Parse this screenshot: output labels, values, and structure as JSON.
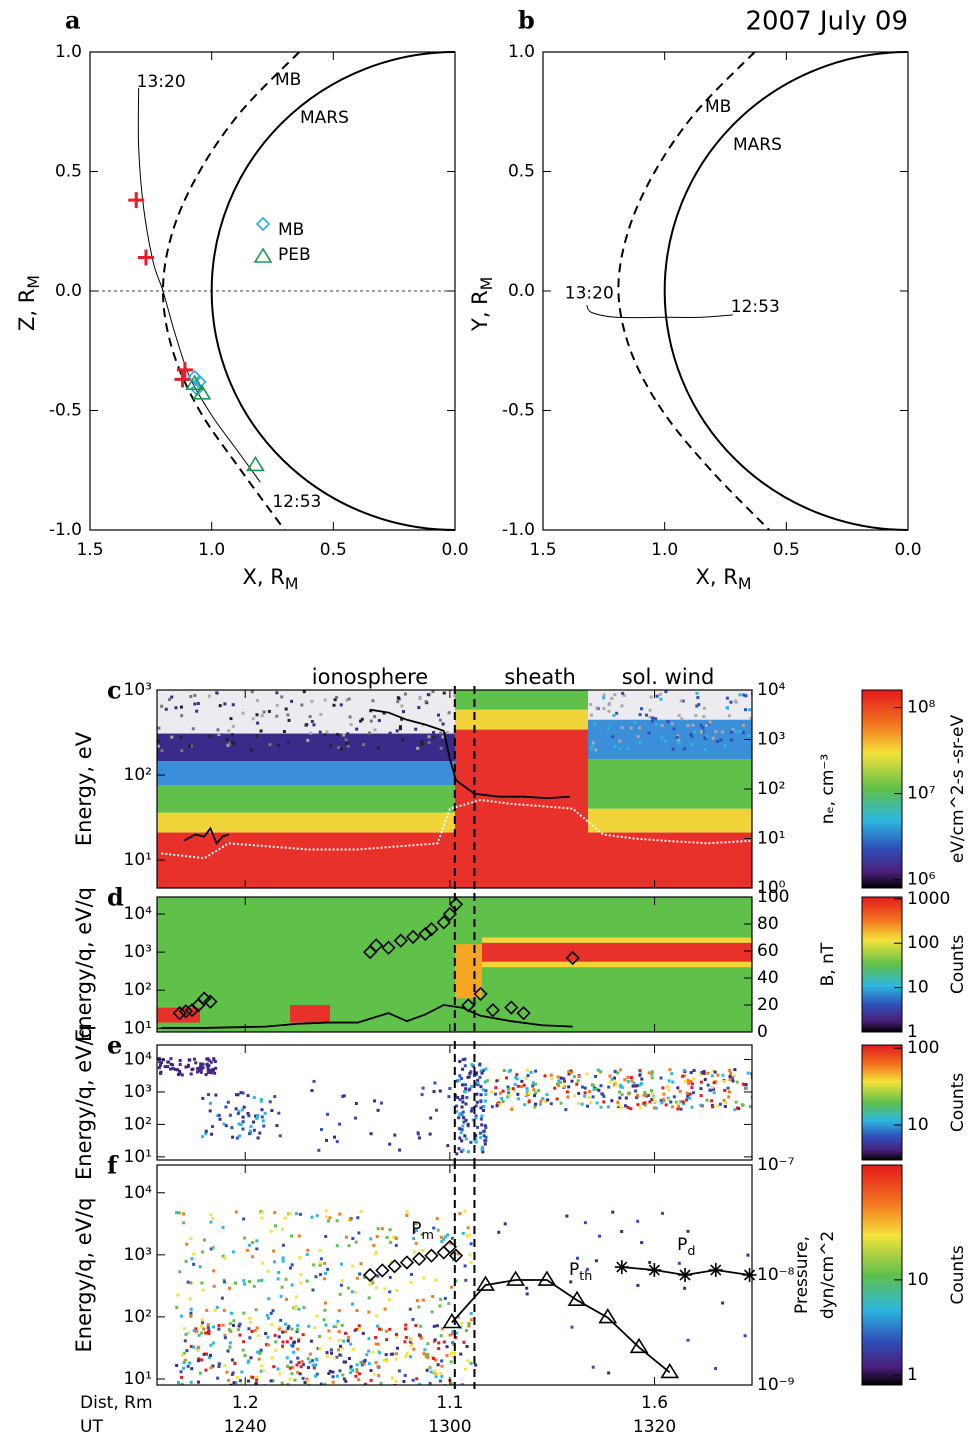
{
  "chart_data": [
    {
      "type": "orbit",
      "label": "a",
      "xlim": [
        1.5,
        0
      ],
      "ylim": [
        -1,
        1
      ],
      "xticks": [
        1.5,
        {
          "value": 1,
          "label": "1.0"
        },
        0.5,
        {
          "value": 0,
          "label": "0.0"
        }
      ],
      "yticks": [
        {
          "value": 1,
          "label": "1.0"
        },
        0.5,
        {
          "value": 0,
          "label": "0.0"
        },
        -0.5,
        {
          "value": -1,
          "label": "-1.0"
        }
      ],
      "xlabel": {
        "text": "X, R",
        "sub": "M"
      },
      "ylabel": {
        "text": "Z, R",
        "sub": "M"
      },
      "mars_radius": 1,
      "mars_label": "MARS",
      "mb_label": "MB",
      "mb_x": [
        0.64,
        0.88,
        1.05,
        1.16,
        1.2,
        1.16,
        1.05,
        0.88,
        0.7
      ],
      "mb_y": [
        1,
        0.75,
        0.5,
        0.25,
        0,
        -0.25,
        -0.5,
        -0.75,
        -1
      ],
      "hline": 0,
      "orbit": {
        "x": [
          1.3,
          1.3,
          1.28,
          1.24,
          1.2,
          1.15,
          1.09,
          1.0,
          0.9,
          0.8
        ],
        "y": [
          0.85,
          0.6,
          0.35,
          0.12,
          0,
          -0.18,
          -0.36,
          -0.52,
          -0.66,
          -0.8
        ],
        "start_label": "13:20",
        "end_label": "12:53"
      },
      "crossings": {
        "color": "#e41e26",
        "x": [
          1.31,
          1.27,
          1.11,
          1.12
        ],
        "y": [
          0.38,
          0.14,
          -0.33,
          -0.37
        ]
      },
      "series": [
        {
          "name": "MB",
          "marker": "diamond",
          "color": "#29abe2",
          "x": [
            1.07,
            1.05,
            1.06
          ],
          "y": [
            -0.36,
            -0.38,
            -0.41
          ]
        },
        {
          "name": "PEB",
          "marker": "triangle",
          "color": "#1a9850",
          "x": [
            1.07,
            1.04,
            0.82
          ],
          "y": [
            -0.39,
            -0.43,
            -0.73
          ]
        }
      ]
    },
    {
      "type": "orbit",
      "label": "b",
      "annotation": "2007  July 09",
      "xlim": [
        1.5,
        0
      ],
      "ylim": [
        -1,
        1
      ],
      "xticks": [
        1.5,
        {
          "value": 1,
          "label": "1.0"
        },
        0.5,
        {
          "value": 0,
          "label": "0.0"
        }
      ],
      "yticks": [
        {
          "value": 1,
          "label": "1.0"
        },
        0.5,
        {
          "value": 0,
          "label": "0.0"
        },
        -0.5,
        {
          "value": -1,
          "label": "-1.0"
        }
      ],
      "xlabel": {
        "text": "X, R",
        "sub": "M"
      },
      "ylabel": {
        "text": "Y, R",
        "sub": "M"
      },
      "mars_radius": 1,
      "mars_label": "MARS",
      "mb_label": "MB",
      "mb_x": [
        0.63,
        0.87,
        1.04,
        1.15,
        1.19,
        1.14,
        1.01,
        0.81,
        0.57
      ],
      "mb_y": [
        1,
        0.75,
        0.5,
        0.25,
        0,
        -0.25,
        -0.5,
        -0.75,
        -1
      ],
      "orbit": {
        "x": [
          1.32,
          1.3,
          1.2,
          1.0,
          0.85,
          0.72
        ],
        "y": [
          -0.06,
          -0.09,
          -0.11,
          -0.11,
          -0.11,
          -0.1
        ],
        "start_label": "13:20",
        "end_label": "12:53"
      }
    },
    {
      "type": "spectrogram",
      "label": "c",
      "xlim": [
        12.523,
        13.492
      ],
      "ylim": [
        4.7,
        1000
      ],
      "ylog": true,
      "yticks": [
        {
          "value": 10,
          "label": "10¹"
        },
        {
          "value": 100,
          "label": "10²"
        },
        {
          "value": 1000,
          "label": "10³"
        }
      ],
      "ylabel": "Energy, eV",
      "y2lim": [
        1,
        10000
      ],
      "y2log": true,
      "y2ticks": [
        {
          "value": 1,
          "label": "10⁰"
        },
        {
          "value": 10,
          "label": "10¹"
        },
        {
          "value": 100,
          "label": "10²"
        },
        {
          "value": 1000,
          "label": "10³"
        },
        {
          "value": 10000,
          "label": "10⁴"
        }
      ],
      "y2label": [
        "nₑ, cm⁻³"
      ],
      "annotations": [
        "ionosphere",
        "sheath",
        "sol. wind"
      ],
      "boundaries": [
        13.008,
        13.04
      ],
      "colorbar": {
        "clim": [
          800000,
          160000000
        ],
        "ticks": [
          {
            "value": 1000000,
            "label": "10⁶"
          },
          {
            "value": 10000000,
            "label": "10⁷"
          },
          {
            "value": 100000000,
            "label": "10⁸"
          }
        ],
        "label": "eV/cm^2-s -sr-eV"
      },
      "series": [
        {
          "color": "#000000",
          "axis": "y2",
          "line": true,
          "x": [
            12.567,
            12.585,
            12.6,
            12.61,
            12.62,
            12.63,
            12.64,
            12.75,
            12.87,
            12.9,
            12.93,
            12.96,
            12.99,
            13.0,
            13.01,
            13.04,
            13.08,
            13.12,
            13.16,
            13.195
          ],
          "values": [
            9,
            12,
            11,
            16,
            8,
            11,
            12,
            null,
            4000,
            3500,
            2500,
            2000,
            1500,
            400,
            150,
            80,
            70,
            70,
            65,
            70
          ]
        },
        {
          "color": "#ffffff",
          "axis": "y2",
          "line": true,
          "dash": true,
          "x": [
            12.53,
            12.6,
            12.64,
            12.7,
            12.77,
            12.85,
            12.92,
            12.98,
            13.0,
            13.05,
            13.1,
            13.15,
            13.2,
            13.25,
            13.3,
            13.35,
            13.42,
            13.49
          ],
          "values": [
            5,
            4,
            8,
            7,
            6,
            6,
            7,
            8,
            40,
            60,
            50,
            45,
            40,
            12,
            10,
            9,
            8,
            9
          ]
        }
      ]
    },
    {
      "type": "spectrogram",
      "label": "d",
      "xlim": [
        12.523,
        13.492
      ],
      "ylim": [
        8,
        28000
      ],
      "ylog": true,
      "yticks": [
        {
          "value": 10,
          "label": "10¹"
        },
        {
          "value": 100,
          "label": "10²"
        },
        {
          "value": 1000,
          "label": "10³"
        },
        {
          "value": 10000,
          "label": "10⁴"
        }
      ],
      "ylabel": "Energy/q,  eV/q",
      "y2lim": [
        0,
        100
      ],
      "y2ticks": [
        0,
        20,
        40,
        60,
        80,
        100
      ],
      "y2label": [
        "B, nT"
      ],
      "boundaries": [
        13.008,
        13.04
      ],
      "colorbar": {
        "clim": [
          1,
          1100
        ],
        "ticks": [
          1,
          10,
          100,
          1000
        ],
        "label": "Counts"
      },
      "series": [
        {
          "color": "#000000",
          "axis": "y2",
          "line": true,
          "x": [
            12.53,
            12.6,
            12.7,
            12.75,
            12.8,
            12.85,
            12.9,
            12.93,
            12.96,
            12.99,
            13.02,
            13.05,
            13.1,
            13.15,
            13.2
          ],
          "values": [
            3,
            3,
            4,
            6,
            7,
            7,
            14,
            8,
            13,
            20,
            18,
            12,
            8,
            5,
            4
          ]
        },
        {
          "color": "#000000",
          "axis": "y",
          "marker": "diamond",
          "x": [
            12.56,
            12.57,
            12.58,
            12.59,
            12.6,
            12.61,
            12.87,
            12.88,
            12.9,
            12.92,
            12.94,
            12.96,
            12.97,
            12.99,
            13.0,
            13.01,
            13.03,
            13.05,
            13.07,
            13.1,
            13.12,
            13.2
          ],
          "values": [
            25,
            28,
            30,
            40,
            60,
            50,
            1000,
            1500,
            1300,
            2000,
            2500,
            3000,
            4000,
            6000,
            10000,
            18000,
            40,
            80,
            30,
            35,
            25,
            700
          ]
        }
      ]
    },
    {
      "type": "spectrogram",
      "label": "e",
      "xlim": [
        12.523,
        13.492
      ],
      "ylim": [
        8,
        28000
      ],
      "ylog": true,
      "yticks": [
        {
          "value": 10,
          "label": "10¹"
        },
        {
          "value": 100,
          "label": "10²"
        },
        {
          "value": 1000,
          "label": "10³"
        },
        {
          "value": 10000,
          "label": "10⁴"
        }
      ],
      "ylabel": "Energy/q,  eV/q",
      "boundaries": [
        13.008,
        13.04
      ],
      "colorbar": {
        "clim": [
          3.5,
          110
        ],
        "ticks": [
          10,
          100
        ],
        "label": "Counts"
      }
    },
    {
      "type": "spectrogram",
      "label": "f",
      "xlim": [
        12.523,
        13.492
      ],
      "ylim": [
        8,
        28000
      ],
      "ylog": true,
      "yticks": [
        {
          "value": 10,
          "label": "10¹"
        },
        {
          "value": 100,
          "label": "10²"
        },
        {
          "value": 1000,
          "label": "10³"
        },
        {
          "value": 10000,
          "label": "10⁴"
        }
      ],
      "ylabel": "Energy/q,  eV/q",
      "y2lim": [
        1e-09,
        1e-07
      ],
      "y2log": true,
      "y2ticks": [
        {
          "value": 1e-09,
          "label": "10⁻⁹"
        },
        {
          "value": 1e-08,
          "label": "10⁻⁸"
        },
        {
          "value": 1e-07,
          "label": "10⁻⁷"
        }
      ],
      "y2label": [
        "Pressure,",
        "dyn/cm^2"
      ],
      "boundaries": [
        13.008,
        13.04
      ],
      "colorbar": {
        "clim": [
          0.79,
          160
        ],
        "ticks": [
          1,
          10
        ],
        "label": "Counts"
      },
      "xticks": [
        {
          "value": 12.6667,
          "label": "1240"
        },
        {
          "value": 13,
          "label": "1300"
        },
        {
          "value": 13.3333,
          "label": "1320"
        }
      ],
      "xlabel": "UT",
      "dist_label": "Dist, Rm",
      "dist_ticks": [
        {
          "value": 12.6667,
          "label": "1.2"
        },
        {
          "value": 13,
          "label": "1.1"
        },
        {
          "value": 13.3333,
          "label": "1.6"
        }
      ],
      "series": [
        {
          "label": {
            "text": "P",
            "sub": "m"
          },
          "color": "#000000",
          "axis": "y2",
          "marker": "diamond",
          "x": [
            12.87,
            12.89,
            12.91,
            12.93,
            12.95,
            12.97,
            12.99,
            13.0,
            13.01
          ],
          "values": [
            1e-08,
            1.1e-08,
            1.2e-08,
            1.3e-08,
            1.4e-08,
            1.5e-08,
            1.6e-08,
            1.8e-08,
            1.5e-08
          ]
        },
        {
          "label": {
            "text": "P",
            "sub": "th"
          },
          "color": "#000000",
          "axis": "y2",
          "line": true,
          "marker": "triangle",
          "x": [
            13.0033,
            13.058,
            13.107,
            13.158,
            13.207,
            13.257,
            13.308,
            13.358
          ],
          "values": [
            3.7e-09,
            8.1e-09,
            9e-09,
            9e-09,
            5.9e-09,
            4.1e-09,
            2.2e-09,
            1.3e-09
          ]
        },
        {
          "label": {
            "text": "P",
            "sub": "d"
          },
          "color": "#000000",
          "axis": "y2",
          "line": true,
          "marker": "star",
          "x": [
            13.28,
            13.333,
            13.383,
            13.433,
            13.488
          ],
          "values": [
            1.18e-08,
            1.11e-08,
            1e-08,
            1.11e-08,
            1e-08
          ]
        }
      ]
    }
  ]
}
